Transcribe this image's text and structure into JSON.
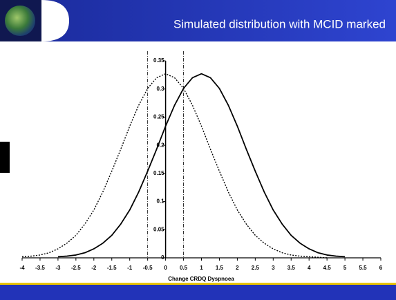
{
  "chart_data": {
    "type": "line",
    "title": "Simulated distribution with MCID marked",
    "x_label": "Change CRDQ Dyspnoea",
    "x": [
      -4,
      -3.75,
      -3.5,
      -3.25,
      -3,
      -2.75,
      -2.5,
      -2.25,
      -2,
      -1.75,
      -1.5,
      -1.25,
      -1,
      -0.75,
      -0.5,
      -0.25,
      0,
      0.25,
      0.5,
      0.75,
      1,
      1.25,
      1.5,
      1.75,
      2,
      2.25,
      2.5,
      2.75,
      3,
      3.25,
      3.5,
      3.75,
      4,
      4.25,
      4.5,
      4.75,
      5,
      5.25,
      5.5,
      5.75,
      6
    ],
    "series": [
      {
        "color": "#000000",
        "dashed": true,
        "values": [
          0.002,
          0.003,
          0.005,
          0.009,
          0.016,
          0.026,
          0.04,
          0.06,
          0.085,
          0.117,
          0.154,
          0.193,
          0.234,
          0.271,
          0.301,
          0.32,
          0.327,
          0.32,
          0.301,
          0.271,
          0.234,
          0.193,
          0.154,
          0.117,
          0.085,
          0.06,
          0.04,
          0.026,
          0.016,
          0.009,
          0.005,
          0.003,
          0.002,
          0.001,
          0,
          null,
          null,
          null,
          null,
          null,
          null
        ]
      },
      {
        "color": "#000000",
        "dashed": false,
        "values": [
          null,
          null,
          null,
          null,
          0.002,
          0.003,
          0.005,
          0.009,
          0.016,
          0.026,
          0.04,
          0.06,
          0.085,
          0.117,
          0.154,
          0.193,
          0.234,
          0.271,
          0.301,
          0.32,
          0.327,
          0.32,
          0.301,
          0.271,
          0.234,
          0.193,
          0.154,
          0.117,
          0.085,
          0.06,
          0.04,
          0.026,
          0.016,
          0.009,
          0.005,
          0.003,
          0.002,
          null,
          null,
          null,
          null
        ]
      }
    ],
    "reference_lines_x": [
      -0.5,
      0.5
    ],
    "xlim": [
      -4,
      6
    ],
    "ylim": [
      0,
      0.35
    ],
    "xticks": [
      -4,
      -3.5,
      -3,
      -2.5,
      -2,
      -1.5,
      -1,
      -0.5,
      0,
      0.5,
      1,
      1.5,
      2,
      2.5,
      3,
      3.5,
      4,
      4.5,
      5,
      5.5,
      6
    ],
    "yticks": [
      0,
      0.05,
      0.1,
      0.15,
      0.2,
      0.25,
      0.3,
      0.35
    ]
  }
}
